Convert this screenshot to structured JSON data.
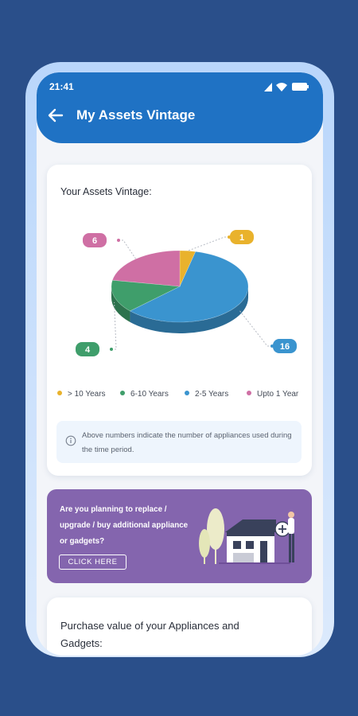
{
  "status_bar": {
    "time": "21:41",
    "icons": [
      "wifi-icon",
      "signal-icon",
      "battery-icon"
    ]
  },
  "header": {
    "title": "My Assets Vintage",
    "back_icon": "arrow-left-icon"
  },
  "vintage_card": {
    "title": "Your Assets Vintage:",
    "info_text": "Above numbers indicate the number of appliances used during the time period.",
    "info_icon": "info-icon"
  },
  "chart_data": {
    "type": "pie",
    "title": "Your Assets Vintage:",
    "categories": [
      "> 10 Years",
      "6-10 Years",
      "2-5 Years",
      "Upto 1 Year"
    ],
    "values": [
      1,
      4,
      16,
      6
    ],
    "colors": [
      "#e9b22c",
      "#3f9e6b",
      "#3a94cf",
      "#cf6fa4"
    ],
    "legend_position": "bottom"
  },
  "promo": {
    "text": "Are you planning to replace / upgrade / buy additional appliance or gadgets?",
    "button_label": "CLICK HERE",
    "background": "#8465ae"
  },
  "purchase_card": {
    "title": "Purchase value of your Appliances and Gadgets:"
  }
}
